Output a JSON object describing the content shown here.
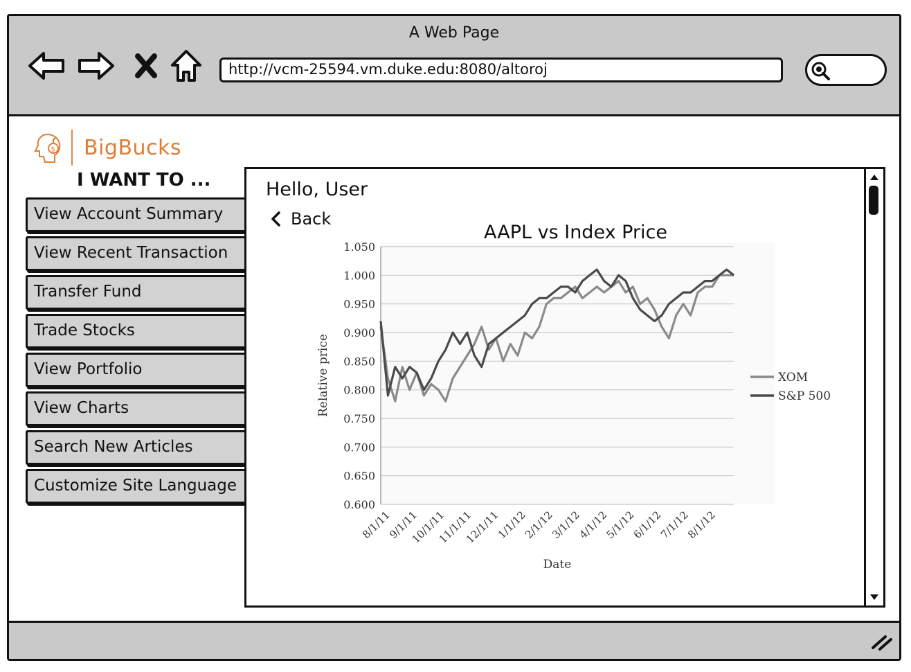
{
  "window": {
    "title": "A Web Page"
  },
  "browser": {
    "url": "http://vcm-25594.vm.duke.edu:8080/altoroj"
  },
  "logo": {
    "text": "BigBucks"
  },
  "sidebar": {
    "heading": "I WANT TO ...",
    "items": [
      {
        "label": "View Account Summary"
      },
      {
        "label": "View Recent Transaction"
      },
      {
        "label": "Transfer Fund"
      },
      {
        "label": "Trade Stocks"
      },
      {
        "label": "View Portfolio"
      },
      {
        "label": "View Charts"
      },
      {
        "label": "Search New Articles"
      },
      {
        "label": "Customize Site Language"
      }
    ]
  },
  "main": {
    "greeting": "Hello, User",
    "back_label": "Back",
    "chart_title": "AAPL vs Index Price"
  },
  "colors": {
    "accent": "#e07d34",
    "chrome": "#c9c9c9",
    "menu_bg": "#d2d2d2"
  },
  "chart_data": {
    "type": "line",
    "xlabel": "Date",
    "ylabel": "Relative price",
    "ylim": [
      0.6,
      1.05
    ],
    "y_ticks": [
      "0.600",
      "0.650",
      "0.700",
      "0.750",
      "0.800",
      "0.850",
      "0.900",
      "0.950",
      "1.000",
      "1.050"
    ],
    "x_ticks": [
      "8/1/11",
      "9/1/11",
      "10/1/11",
      "11/1/11",
      "12/1/11",
      "1/1/12",
      "2/1/12",
      "3/1/12",
      "4/1/12",
      "5/1/12",
      "6/1/12",
      "7/1/12",
      "8/1/12"
    ],
    "grid": true,
    "legend_position": "right",
    "series": [
      {
        "name": "XOM",
        "color": "#8a8a8a",
        "values": [
          0.91,
          0.82,
          0.78,
          0.84,
          0.8,
          0.83,
          0.79,
          0.81,
          0.8,
          0.78,
          0.82,
          0.84,
          0.86,
          0.88,
          0.91,
          0.87,
          0.89,
          0.85,
          0.88,
          0.86,
          0.9,
          0.89,
          0.91,
          0.95,
          0.96,
          0.96,
          0.97,
          0.98,
          0.96,
          0.97,
          0.98,
          0.97,
          0.98,
          0.99,
          0.97,
          0.98,
          0.95,
          0.96,
          0.94,
          0.91,
          0.89,
          0.93,
          0.95,
          0.93,
          0.97,
          0.98,
          0.98,
          1.0,
          1.0,
          1.0
        ]
      },
      {
        "name": "S&P 500",
        "color": "#4a4a4a",
        "values": [
          0.92,
          0.79,
          0.84,
          0.82,
          0.84,
          0.83,
          0.8,
          0.82,
          0.85,
          0.87,
          0.9,
          0.88,
          0.9,
          0.86,
          0.84,
          0.88,
          0.89,
          0.9,
          0.91,
          0.92,
          0.93,
          0.95,
          0.96,
          0.96,
          0.97,
          0.98,
          0.98,
          0.97,
          0.99,
          1.0,
          1.01,
          0.99,
          0.98,
          1.0,
          0.99,
          0.96,
          0.94,
          0.93,
          0.92,
          0.93,
          0.95,
          0.96,
          0.97,
          0.97,
          0.98,
          0.99,
          0.99,
          1.0,
          1.01,
          1.0
        ]
      }
    ]
  }
}
